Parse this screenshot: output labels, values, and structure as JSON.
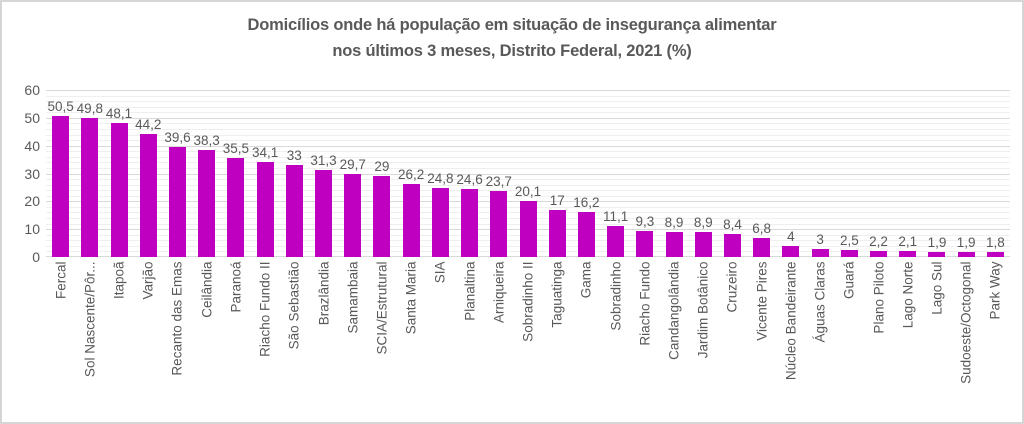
{
  "chart_data": {
    "type": "bar",
    "title": "Domicílios onde há população em situação de insegurança alimentar",
    "subtitle": "nos últimos 3 meses, Distrito Federal, 2021 (%)",
    "categories": [
      "Fercal",
      "Sol Nascente/Pôr...",
      "Itapoã",
      "Varjão",
      "Recanto das Emas",
      "Ceilândia",
      "Paranoá",
      "Riacho Fundo II",
      "São Sebastião",
      "Brazlândia",
      "Samambaia",
      "SCIA/Estrutural",
      "Santa Maria",
      "SIA",
      "Planaltina",
      "Arniqueira",
      "Sobradinho II",
      "Taguatinga",
      "Gama",
      "Sobradinho",
      "Riacho Fundo",
      "Candangolândia",
      "Jardim Botânico",
      "Cruzeiro",
      "Vicente Pires",
      "Núcleo Bandeirante",
      "Águas Claras",
      "Guará",
      "Plano Piloto",
      "Lago Norte",
      "Lago Sul",
      "Sudoeste/Octogonal",
      "Park Way"
    ],
    "values": [
      50.5,
      49.8,
      48.1,
      44.2,
      39.6,
      38.3,
      35.5,
      34.1,
      33,
      31.3,
      29.7,
      29,
      26.2,
      24.8,
      24.6,
      23.7,
      20.1,
      17,
      16.2,
      11.1,
      9.3,
      8.9,
      8.9,
      8.4,
      6.8,
      4,
      3,
      2.5,
      2.2,
      2.1,
      1.9,
      1.9,
      1.8
    ],
    "value_labels": [
      "50,5",
      "49,8",
      "48,1",
      "44,2",
      "39,6",
      "38,3",
      "35,5",
      "34,1",
      "33",
      "31,3",
      "29,7",
      "29",
      "26,2",
      "24,8",
      "24,6",
      "23,7",
      "20,1",
      "17",
      "16,2",
      "11,1",
      "9,3",
      "8,9",
      "8,9",
      "8,4",
      "6,8",
      "4",
      "3",
      "2,5",
      "2,2",
      "2,1",
      "1,9",
      "1,9",
      "1,8"
    ],
    "xlabel": "",
    "ylabel": "",
    "ylim": [
      0,
      60
    ],
    "ytick_step": 10,
    "minor_gridline_step": 2,
    "yticks": [
      "0",
      "10",
      "20",
      "30",
      "40",
      "50",
      "60"
    ],
    "grid": true,
    "legend_position": "none",
    "bar_color": "#C000C0",
    "text_color": "#595959",
    "minor_grid_color": "#efefef",
    "major_grid_color": "#d9d9d9"
  }
}
